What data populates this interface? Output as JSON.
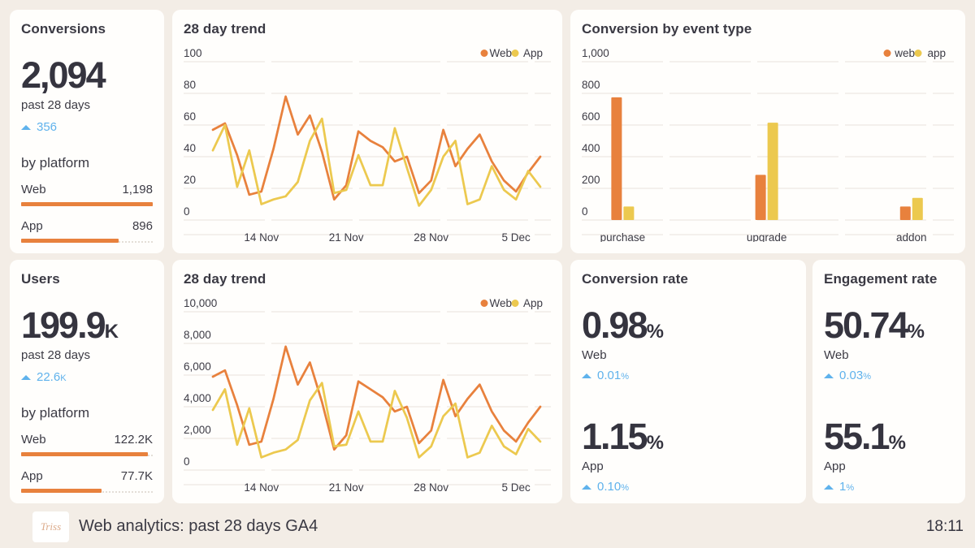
{
  "colors": {
    "web": "#e8813d",
    "app": "#ecc94f",
    "delta_blue": "#5fb2ec",
    "background": "#f3ede6",
    "card": "#fffefc",
    "text": "#3c3b45",
    "gridline": "#e9e3dc"
  },
  "cards": {
    "conversions": {
      "title": "Conversions",
      "value": "2,094",
      "value_suffix": "",
      "period": "past 28 days",
      "delta": "356",
      "delta_suffix": "",
      "by_platform_label": "by platform",
      "rows": [
        {
          "label": "Web",
          "value": "1,198",
          "pct": 100
        },
        {
          "label": "App",
          "value": "896",
          "pct": 74
        }
      ]
    },
    "users": {
      "title": "Users",
      "value": "199.9",
      "value_suffix": "K",
      "period": "past 28 days",
      "delta": "22.6",
      "delta_suffix": "K",
      "by_platform_label": "by platform",
      "rows": [
        {
          "label": "Web",
          "value": "122.2K",
          "pct": 96
        },
        {
          "label": "App",
          "value": "77.7K",
          "pct": 61
        }
      ]
    },
    "conversion_rate": {
      "title": "Conversion rate",
      "stats": [
        {
          "value": "0.98",
          "suffix": "%",
          "label": "Web",
          "delta": "0.01",
          "delta_suffix": "%"
        },
        {
          "value": "1.15",
          "suffix": "%",
          "label": "App",
          "delta": "0.10",
          "delta_suffix": "%"
        }
      ]
    },
    "engagement_rate": {
      "title": "Engagement rate",
      "stats": [
        {
          "value": "50.74",
          "suffix": "%",
          "label": "Web",
          "delta": "0.03",
          "delta_suffix": "%"
        },
        {
          "value": "55.1",
          "suffix": "%",
          "label": "App",
          "delta": "1",
          "delta_suffix": "%"
        }
      ]
    }
  },
  "chart_data": [
    {
      "id": "trend_conversions",
      "type": "line",
      "title": "28 day trend",
      "ylim": [
        0,
        100
      ],
      "y_ticks": [
        0,
        20,
        40,
        60,
        80,
        100
      ],
      "x_ticks": [
        {
          "index": 4,
          "label": "14 Nov"
        },
        {
          "index": 11,
          "label": "21 Nov"
        },
        {
          "index": 18,
          "label": "28 Nov"
        },
        {
          "index": 25,
          "label": "5 Dec"
        }
      ],
      "grid": true,
      "legend_position": "top-right",
      "series": [
        {
          "name": "Web",
          "color": "#e8813d",
          "values": [
            57,
            61,
            41,
            16,
            18,
            45,
            78,
            54,
            66,
            43,
            13,
            22,
            56,
            50,
            46,
            37,
            40,
            17,
            25,
            57,
            34,
            45,
            54,
            37,
            25,
            18,
            30,
            40
          ]
        },
        {
          "name": "App",
          "color": "#ecc94f",
          "values": [
            44,
            60,
            21,
            44,
            10,
            13,
            15,
            24,
            50,
            64,
            17,
            19,
            41,
            22,
            22,
            58,
            33,
            9,
            19,
            40,
            50,
            10,
            13,
            34,
            19,
            13,
            31,
            21
          ]
        }
      ]
    },
    {
      "id": "trend_users",
      "type": "line",
      "title": "28 day trend",
      "ylim": [
        0,
        10000
      ],
      "y_ticks": [
        0,
        2000,
        4000,
        6000,
        8000,
        10000
      ],
      "x_ticks": [
        {
          "index": 4,
          "label": "14 Nov"
        },
        {
          "index": 11,
          "label": "21 Nov"
        },
        {
          "index": 18,
          "label": "28 Nov"
        },
        {
          "index": 25,
          "label": "5 Dec"
        }
      ],
      "grid": true,
      "legend_position": "top-right",
      "series": [
        {
          "name": "Web",
          "color": "#e8813d",
          "values": [
            5900,
            6300,
            4100,
            1600,
            1800,
            4500,
            7800,
            5400,
            6800,
            4300,
            1300,
            2200,
            5600,
            5100,
            4600,
            3700,
            4000,
            1700,
            2500,
            5700,
            3400,
            4500,
            5400,
            3700,
            2500,
            1800,
            3000,
            4000
          ]
        },
        {
          "name": "App",
          "color": "#ecc94f",
          "values": [
            3800,
            5100,
            1600,
            3900,
            800,
            1100,
            1300,
            1900,
            4400,
            5500,
            1500,
            1600,
            3700,
            1800,
            1800,
            5000,
            3300,
            800,
            1500,
            3400,
            4200,
            800,
            1100,
            2800,
            1500,
            1000,
            2600,
            1800
          ]
        }
      ]
    },
    {
      "id": "events",
      "type": "bar",
      "title": "Conversion by event type",
      "categories": [
        "purchase",
        "upgrade",
        "addon"
      ],
      "ylim": [
        0,
        1000
      ],
      "y_ticks": [
        0,
        200,
        400,
        600,
        800,
        1000
      ],
      "grid": true,
      "legend_position": "top-right",
      "series": [
        {
          "name": "web",
          "color": "#e8813d",
          "values": [
            775,
            285,
            85
          ]
        },
        {
          "name": "app",
          "color": "#ecc94f",
          "values": [
            85,
            615,
            140
          ]
        }
      ]
    }
  ],
  "footer": {
    "logo_text": "Triss",
    "title": "Web analytics: past 28 days GA4",
    "time": "18:11"
  }
}
